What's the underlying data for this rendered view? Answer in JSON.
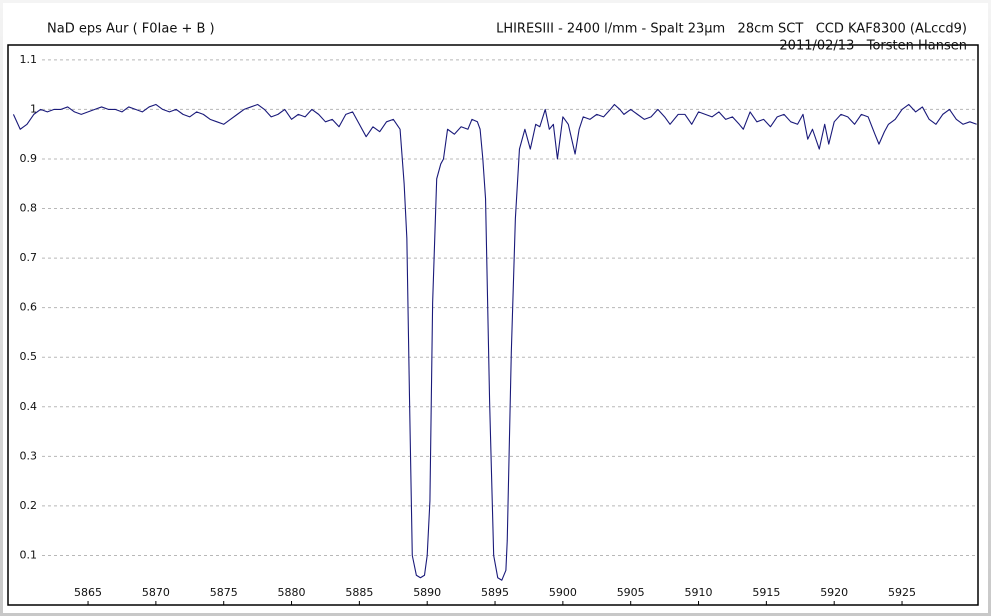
{
  "chart_data": {
    "type": "line",
    "title": "NaD eps Aur ( F0Iae + B )",
    "notes": [
      "LHIRESIII - 2400 l/mm - Spalt 23µm   28cm SCT   CCD KAF8300 (ALccd9)",
      "2011/02/13   Torsten Hansen"
    ],
    "color": "#1a1a7a",
    "grid": true,
    "xlim": [
      5859.1,
      5930.6
    ],
    "ylim": [
      0,
      1.13
    ],
    "xticks": [
      5865,
      5870,
      5875,
      5880,
      5885,
      5890,
      5895,
      5900,
      5905,
      5910,
      5915,
      5920,
      5925
    ],
    "yticks": [
      0.1,
      0.2,
      0.3,
      0.4,
      0.5,
      0.6,
      0.7,
      0.8,
      0.9,
      1,
      1.1
    ],
    "x": [
      5859.5,
      5860,
      5860.5,
      5861,
      5861.5,
      5862,
      5862.5,
      5863,
      5863.5,
      5864,
      5864.5,
      5865,
      5865.5,
      5866,
      5866.5,
      5867,
      5867.5,
      5868,
      5868.5,
      5869,
      5869.5,
      5870,
      5870.5,
      5871,
      5871.5,
      5872,
      5872.5,
      5873,
      5873.5,
      5874,
      5874.5,
      5875,
      5875.5,
      5876,
      5876.5,
      5877,
      5877.5,
      5878,
      5878.5,
      5879,
      5879.5,
      5880,
      5880.5,
      5881,
      5881.5,
      5882,
      5882.5,
      5883,
      5883.5,
      5884,
      5884.5,
      5885,
      5885.5,
      5886,
      5886.5,
      5887,
      5887.5,
      5888,
      5888.3,
      5888.5,
      5888.7,
      5888.9,
      5889.2,
      5889.5,
      5889.8,
      5890,
      5890.2,
      5890.4,
      5890.7,
      5891,
      5891.2,
      5891.5,
      5892,
      5892.5,
      5893,
      5893.3,
      5893.7,
      5893.9,
      5894.1,
      5894.3,
      5894.6,
      5894.9,
      5895.2,
      5895.5,
      5895.8,
      5895.9,
      5896.2,
      5896.5,
      5896.8,
      5897.2,
      5897.6,
      5898,
      5898.3,
      5898.7,
      5899,
      5899.3,
      5899.6,
      5900,
      5900.4,
      5900.9,
      5901.2,
      5901.5,
      5902,
      5902.5,
      5903,
      5903.5,
      5903.8,
      5904.2,
      5904.5,
      5905,
      5905.5,
      5906,
      5906.5,
      5907,
      5907.5,
      5907.9,
      5908.5,
      5909,
      5909.5,
      5910,
      5910.5,
      5911,
      5911.5,
      5912,
      5912.5,
      5913,
      5913.3,
      5913.8,
      5914.3,
      5914.8,
      5915.3,
      5915.8,
      5916.3,
      5916.8,
      5917.3,
      5917.7,
      5918.05,
      5918.4,
      5918.9,
      5919.3,
      5919.6,
      5920,
      5920.5,
      5921,
      5921.5,
      5922,
      5922.5,
      5923,
      5923.3,
      5923.7,
      5924,
      5924.5,
      5925,
      5925.5,
      5926,
      5926.5,
      5927,
      5927.5,
      5928,
      5928.5,
      5929,
      5929.5,
      5930,
      5930.5
    ],
    "values": [
      0.99,
      0.96,
      0.97,
      0.99,
      1,
      0.995,
      1,
      1,
      1.005,
      0.995,
      0.99,
      0.995,
      1,
      1.005,
      1,
      1,
      0.995,
      1.005,
      1,
      0.995,
      1.005,
      1.01,
      1,
      0.995,
      1,
      0.99,
      0.985,
      0.995,
      0.99,
      0.98,
      0.975,
      0.97,
      0.98,
      0.99,
      1,
      1.005,
      1.01,
      1,
      0.985,
      0.99,
      1,
      0.98,
      0.99,
      0.985,
      1,
      0.99,
      0.975,
      0.98,
      0.965,
      0.99,
      0.995,
      0.97,
      0.945,
      0.965,
      0.955,
      0.975,
      0.98,
      0.96,
      0.85,
      0.74,
      0.41,
      0.1,
      0.06,
      0.055,
      0.06,
      0.1,
      0.21,
      0.61,
      0.86,
      0.89,
      0.9,
      0.96,
      0.95,
      0.965,
      0.96,
      0.98,
      0.975,
      0.96,
      0.9,
      0.82,
      0.41,
      0.1,
      0.055,
      0.05,
      0.07,
      0.13,
      0.51,
      0.78,
      0.92,
      0.96,
      0.92,
      0.97,
      0.965,
      1,
      0.96,
      0.97,
      0.9,
      0.985,
      0.97,
      0.91,
      0.96,
      0.985,
      0.98,
      0.99,
      0.985,
      1,
      1.01,
      1,
      0.99,
      1,
      0.99,
      0.98,
      0.985,
      1,
      0.985,
      0.97,
      0.99,
      0.99,
      0.97,
      0.995,
      0.99,
      0.985,
      0.995,
      0.98,
      0.985,
      0.97,
      0.96,
      0.995,
      0.975,
      0.98,
      0.965,
      0.985,
      0.99,
      0.975,
      0.97,
      0.99,
      0.94,
      0.96,
      0.92,
      0.97,
      0.93,
      0.975,
      0.99,
      0.985,
      0.97,
      0.99,
      0.985,
      0.95,
      0.93,
      0.955,
      0.97,
      0.98,
      1,
      1.01,
      0.995,
      1.005,
      0.98,
      0.97,
      0.99,
      1,
      0.98,
      0.97,
      0.975,
      0.97
    ]
  }
}
